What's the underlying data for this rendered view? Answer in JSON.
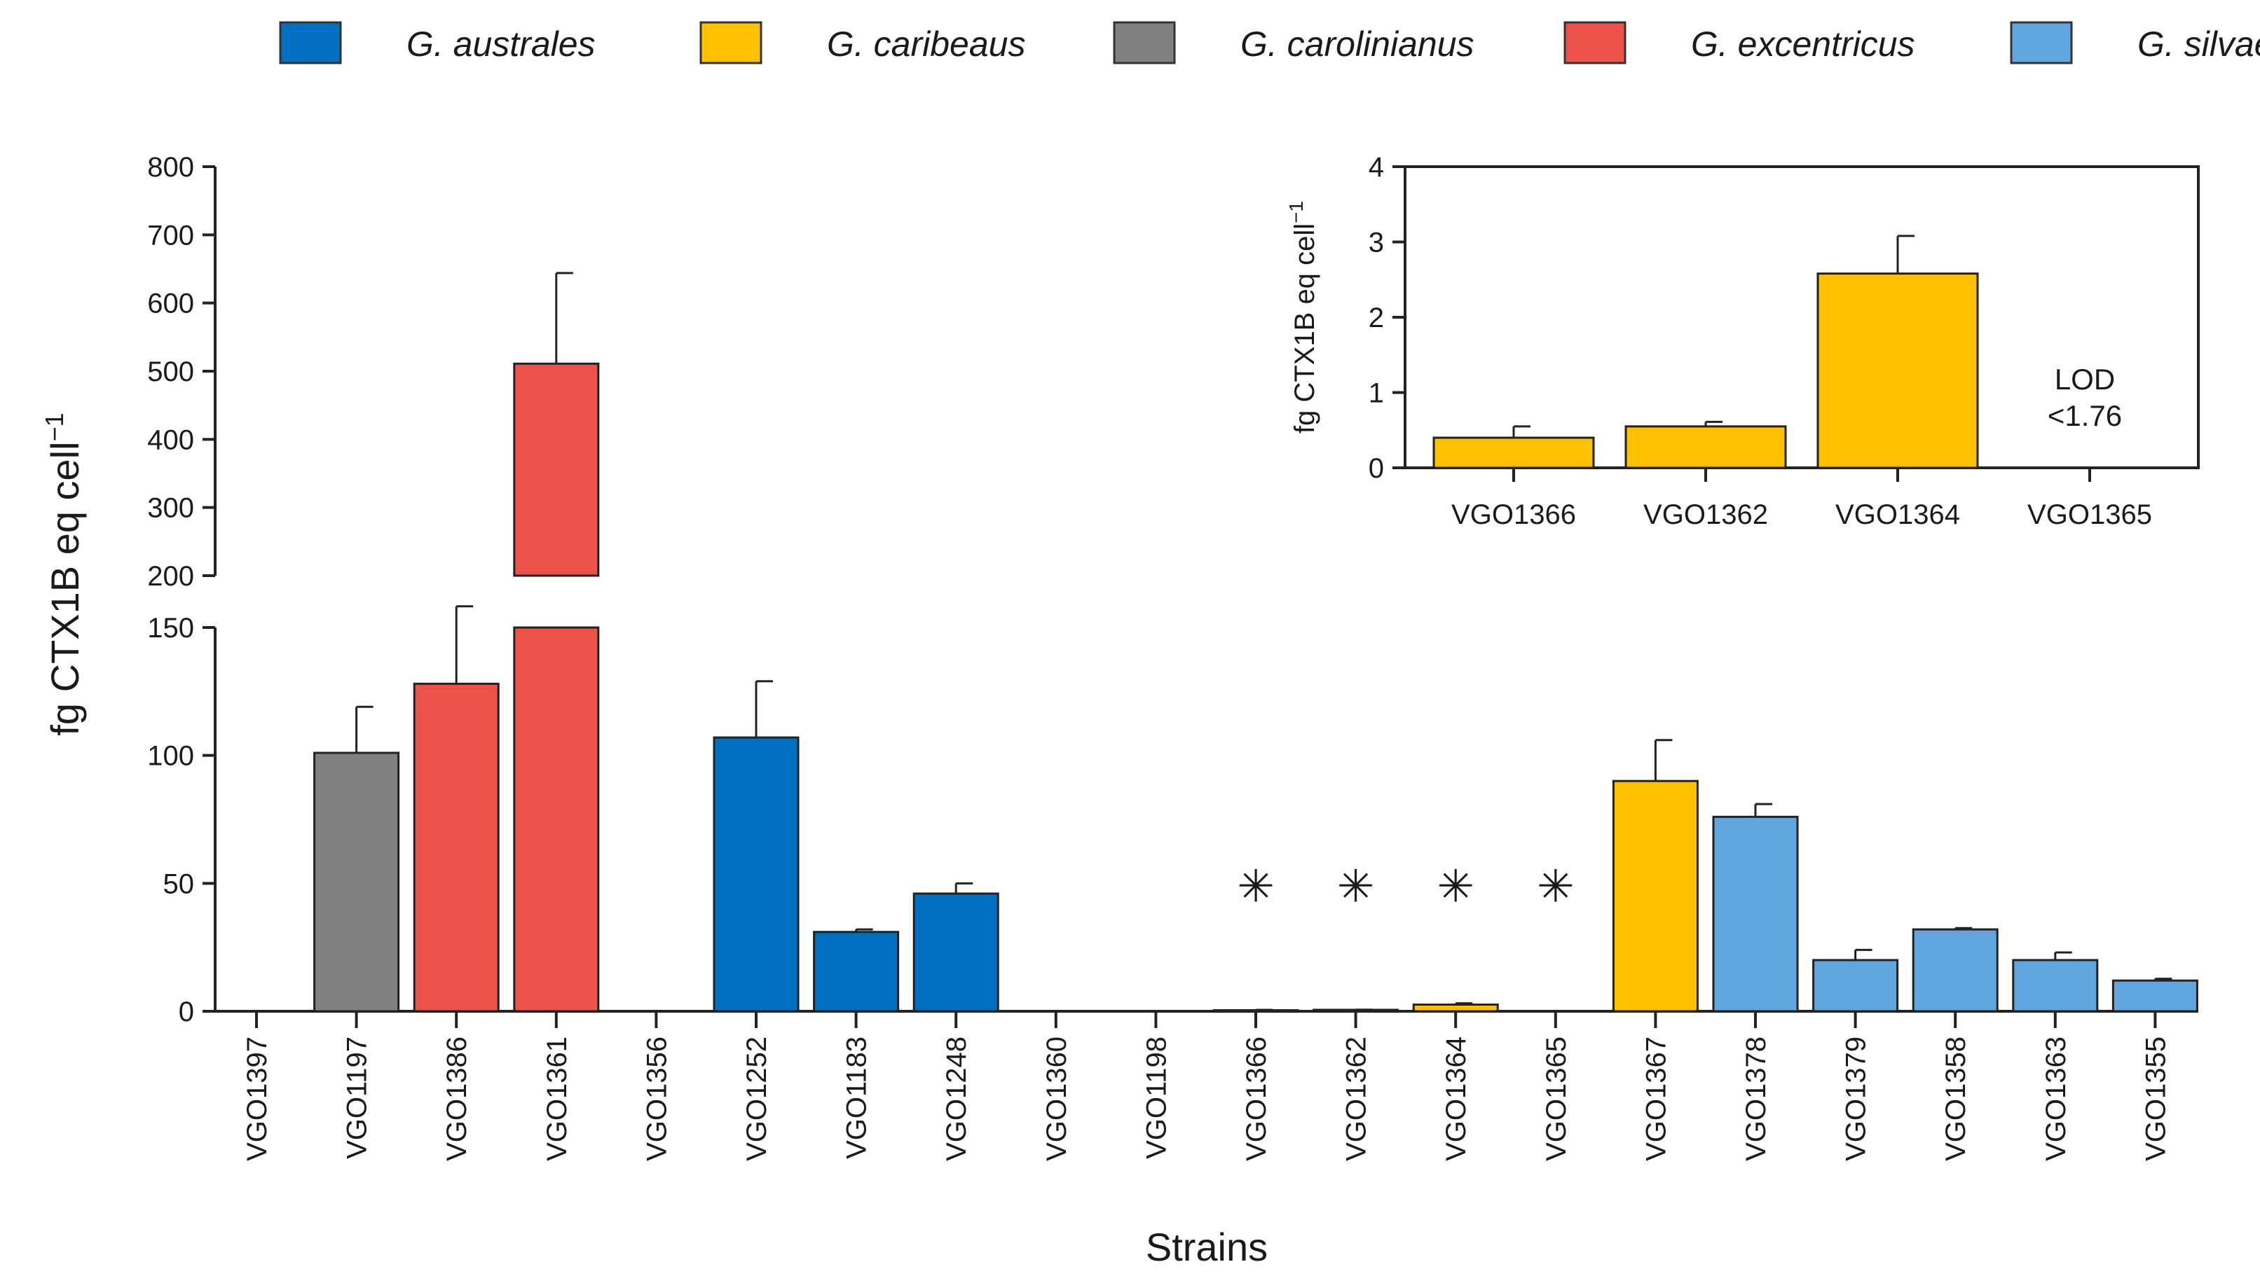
{
  "chart_data": {
    "type": "bar",
    "xlabel": "Strains",
    "ylabel": "fg CTX1B eq cell",
    "ylabel_superscript": "−1",
    "y_break": {
      "from": 150,
      "to": 200
    },
    "ylim": [
      0,
      800
    ],
    "yticks_lower": [
      0,
      50,
      100,
      150
    ],
    "yticks_upper": [
      200,
      300,
      400,
      500,
      600,
      700,
      800
    ],
    "legend": [
      {
        "name": "G. australes",
        "color": "#0070c0"
      },
      {
        "name": "G. caribeaus",
        "color": "#ffc000"
      },
      {
        "name": "G. carolinianus",
        "color": "#808080"
      },
      {
        "name": "G. excentricus",
        "color": "#ed5249"
      },
      {
        "name": "G. silvae",
        "color": "#62a6e0"
      }
    ],
    "bars": [
      {
        "strain": "VGO1397",
        "species": null,
        "value": 0,
        "error": 0
      },
      {
        "strain": "VGO1197",
        "species": "G. carolinianus",
        "value": 101,
        "error": 18
      },
      {
        "strain": "VGO1386",
        "species": "G. excentricus",
        "value": 128,
        "error": 27
      },
      {
        "strain": "VGO1361",
        "species": "G. excentricus",
        "value": 511,
        "error": 133
      },
      {
        "strain": "VGO1356",
        "species": null,
        "value": 0,
        "error": 0
      },
      {
        "strain": "VGO1252",
        "species": "G. australes",
        "value": 107,
        "error": 22
      },
      {
        "strain": "VGO1183",
        "species": "G. australes",
        "value": 31,
        "error": 1
      },
      {
        "strain": "VGO1248",
        "species": "G. australes",
        "value": 46,
        "error": 4
      },
      {
        "strain": "VGO1360",
        "species": null,
        "value": 0,
        "error": 0
      },
      {
        "strain": "VGO1198",
        "species": null,
        "value": 0,
        "error": 0
      },
      {
        "strain": "VGO1366",
        "species": "G. caribeaus",
        "value": 0.4,
        "error": 0.15,
        "starred": true
      },
      {
        "strain": "VGO1362",
        "species": "G. caribeaus",
        "value": 0.56,
        "error": 0.05,
        "starred": true
      },
      {
        "strain": "VGO1364",
        "species": "G. caribeaus",
        "value": 2.6,
        "error": 0.5,
        "starred": true
      },
      {
        "strain": "VGO1365",
        "species": null,
        "value": 0,
        "error": 0,
        "starred": true
      },
      {
        "strain": "VGO1367",
        "species": "G. caribeaus",
        "value": 90,
        "error": 16
      },
      {
        "strain": "VGO1378",
        "species": "G. silvae",
        "value": 76,
        "error": 5
      },
      {
        "strain": "VGO1379",
        "species": "G. silvae",
        "value": 20,
        "error": 4
      },
      {
        "strain": "VGO1358",
        "species": "G. silvae",
        "value": 32,
        "error": 0.5
      },
      {
        "strain": "VGO1363",
        "species": "G. silvae",
        "value": 20,
        "error": 3
      },
      {
        "strain": "VGO1355",
        "species": "G. silvae",
        "value": 12,
        "error": 0.7
      }
    ],
    "star_symbol": "✳",
    "inset": {
      "ylabel": "fg CTX1B eq cell",
      "ylabel_superscript": "−1",
      "ylim": [
        0,
        4
      ],
      "yticks": [
        0,
        1,
        2,
        3,
        4
      ],
      "bars": [
        {
          "strain": "VGO1366",
          "value": 0.4,
          "error": 0.15
        },
        {
          "strain": "VGO1362",
          "value": 0.55,
          "error": 0.06
        },
        {
          "strain": "VGO1364",
          "value": 2.58,
          "error": 0.5
        },
        {
          "strain": "VGO1365",
          "value": 0,
          "error": 0
        }
      ],
      "bar_color": "#ffc000",
      "lod_title": "LOD",
      "lod_value": "<1.76"
    }
  }
}
